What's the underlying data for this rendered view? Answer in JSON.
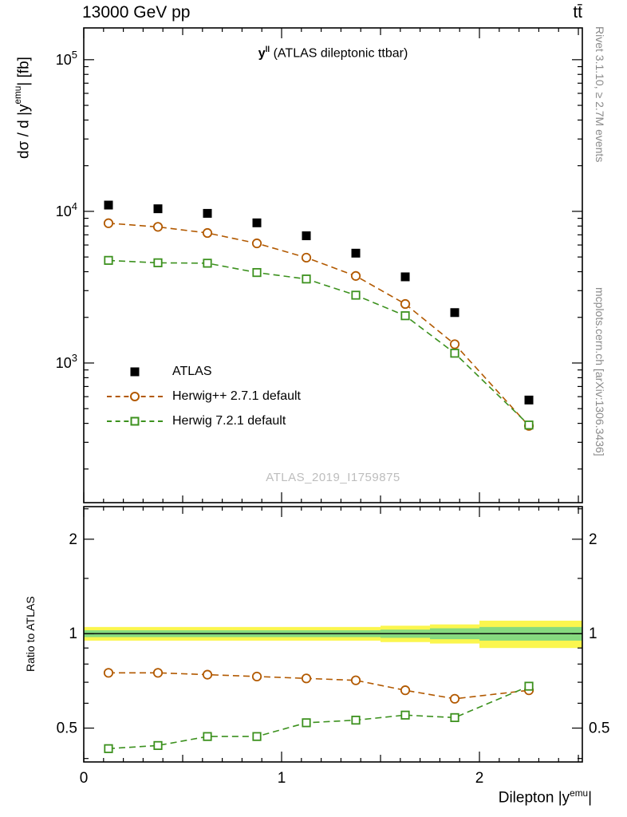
{
  "header": {
    "left_title": "13000 GeV pp",
    "right_title": "tt̄"
  },
  "margin_notes": {
    "right_top": "Rivet 3.1.10, ≥ 2.7M events",
    "right_bottom": "mcplots.cern.ch [arXiv:1306.3436]"
  },
  "main_panel_title": {
    "base": "y",
    "sup": "ll",
    "rest": " (ATLAS dileptonic ttbar)"
  },
  "watermark": "ATLAS_2019_I1759875",
  "axis_labels": {
    "y_main": {
      "prefix": "dσ / d |y",
      "sup": "emu",
      "suffix": "| [fb]"
    },
    "y_ratio": "Ratio to ATLAS",
    "x": {
      "prefix": "Dilepton |y",
      "sup": "emu",
      "suffix": "|"
    }
  },
  "legend": {
    "items": [
      {
        "label": "ATLAS",
        "marker": "filled-square",
        "line": "none",
        "color": "#000000"
      },
      {
        "label": "Herwig++ 2.7.1 default",
        "marker": "open-circle",
        "line": "dashed",
        "color": "#b25900"
      },
      {
        "label": "Herwig 7.2.1 default",
        "marker": "open-square",
        "line": "dashed",
        "color": "#3c911e"
      }
    ]
  },
  "chart_data": {
    "type": "scatter",
    "title": "y^ll (ATLAS dileptonic ttbar)",
    "xlabel": "Dilepton |y^emu|",
    "ylabel": "dσ / d |y^emu| [fb]",
    "x": [
      0.125,
      0.375,
      0.625,
      0.875,
      1.125,
      1.375,
      1.625,
      1.875,
      2.25
    ],
    "bin_edges": [
      0,
      0.25,
      0.5,
      0.75,
      1.0,
      1.25,
      1.5,
      1.75,
      2.0,
      2.5
    ],
    "xlim": [
      0,
      2.52
    ],
    "xticks": [
      0,
      1,
      2
    ],
    "xtick_labels": [
      "0",
      "1",
      "2"
    ],
    "main_panel": {
      "ylog": true,
      "ylim": [
        120,
        162000
      ],
      "ytick_exponents": [
        3,
        4,
        5
      ],
      "series": [
        {
          "name": "ATLAS",
          "color": "#000000",
          "marker": "filled-square",
          "line": "none",
          "values": [
            11000,
            10400,
            9700,
            8400,
            6900,
            5300,
            3700,
            2150,
            570
          ]
        },
        {
          "name": "Herwig++ 2.7.1 default",
          "color": "#b25900",
          "marker": "open-circle",
          "line": "dashed",
          "values": [
            8350,
            7900,
            7200,
            6150,
            4950,
            3750,
            2450,
            1330,
            385
          ]
        },
        {
          "name": "Herwig 7.2.1 default",
          "color": "#3c911e",
          "marker": "open-square",
          "line": "dashed",
          "values": [
            4750,
            4580,
            4550,
            3950,
            3580,
            2800,
            2050,
            1160,
            390
          ]
        }
      ]
    },
    "ratio_panel": {
      "ylog": true,
      "ylim": [
        0.39,
        2.54
      ],
      "yticks": [
        0.5,
        1,
        2
      ],
      "ytick_labels": [
        "0.5",
        "1",
        "2"
      ],
      "minor_yticks": [
        0.4,
        0.6,
        0.7,
        0.8,
        0.9,
        1.5,
        2.5
      ],
      "reference_line": 1,
      "bands": {
        "outer": {
          "color": "#fbf64e",
          "lo": [
            0.95,
            0.95,
            0.95,
            0.95,
            0.95,
            0.95,
            0.94,
            0.93,
            0.9
          ],
          "hi": [
            1.05,
            1.05,
            1.05,
            1.05,
            1.05,
            1.05,
            1.06,
            1.07,
            1.1
          ]
        },
        "inner": {
          "color": "#86da7f",
          "lo": [
            0.975,
            0.975,
            0.975,
            0.975,
            0.975,
            0.975,
            0.97,
            0.96,
            0.95
          ],
          "hi": [
            1.025,
            1.025,
            1.025,
            1.025,
            1.025,
            1.025,
            1.03,
            1.04,
            1.05
          ]
        }
      },
      "series": [
        {
          "name": "Herwig++ 2.7.1 default",
          "color": "#b25900",
          "marker": "open-circle",
          "line": "dashed",
          "values": [
            0.75,
            0.75,
            0.74,
            0.73,
            0.72,
            0.71,
            0.66,
            0.62,
            0.66
          ]
        },
        {
          "name": "Herwig 7.2.1 default",
          "color": "#3c911e",
          "marker": "open-square",
          "line": "dashed",
          "values": [
            0.43,
            0.44,
            0.47,
            0.47,
            0.52,
            0.53,
            0.55,
            0.54,
            0.68
          ]
        }
      ]
    }
  }
}
